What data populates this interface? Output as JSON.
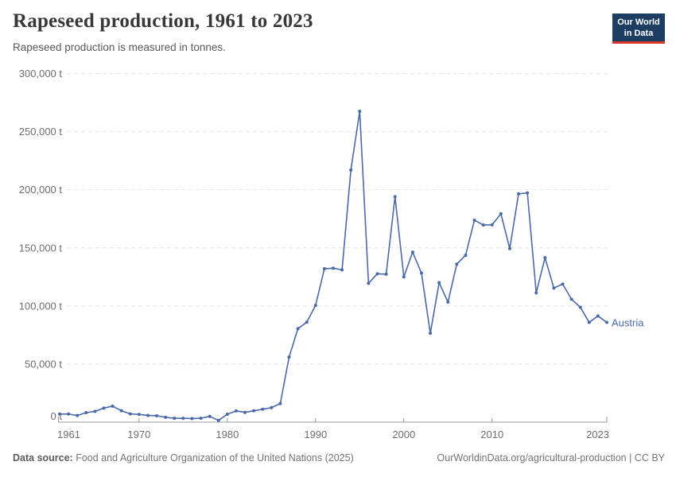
{
  "header": {
    "title": "Rapeseed production, 1961 to 2023",
    "subtitle": "Rapeseed production is measured in tonnes."
  },
  "logo": {
    "line1": "Our World",
    "line2": "in Data"
  },
  "colors": {
    "line": "#4a69a8",
    "grid": "#e3e3e3",
    "axis": "#999999",
    "tick_label": "#6e6e6e",
    "title": "#383838",
    "logo_bg": "#1d3d63",
    "logo_red": "#d93a2b"
  },
  "chart_data": {
    "type": "line",
    "title": "Rapeseed production, 1961 to 2023",
    "subtitle": "Rapeseed production is measured in tonnes.",
    "unit": "t",
    "xlabel": "",
    "ylabel": "",
    "xlim": [
      1961,
      2023
    ],
    "ylim": [
      0,
      300000
    ],
    "grid": "horizontal-dashed",
    "legend_position": "line-end-label",
    "x_ticks": [
      1961,
      1970,
      1980,
      1990,
      2000,
      2010,
      2023
    ],
    "y_ticks": [
      0,
      50000,
      100000,
      150000,
      200000,
      250000,
      300000
    ],
    "years": [
      1961,
      1962,
      1963,
      1964,
      1965,
      1966,
      1967,
      1968,
      1969,
      1970,
      1971,
      1972,
      1973,
      1974,
      1975,
      1976,
      1977,
      1978,
      1979,
      1980,
      1981,
      1982,
      1983,
      1984,
      1985,
      1986,
      1987,
      1988,
      1989,
      1990,
      1991,
      1992,
      1993,
      1994,
      1995,
      1996,
      1997,
      1998,
      1999,
      2000,
      2001,
      2002,
      2003,
      2004,
      2005,
      2006,
      2007,
      2008,
      2009,
      2010,
      2011,
      2012,
      2013,
      2014,
      2015,
      2016,
      2017,
      2018,
      2019,
      2020,
      2021,
      2022,
      2023
    ],
    "series": [
      {
        "name": "Austria",
        "color": "#4a69a8",
        "values": [
          7000,
          7000,
          5700,
          8200,
          9200,
          12100,
          13800,
          9800,
          7100,
          6700,
          5800,
          5500,
          4200,
          3300,
          3300,
          3100,
          3300,
          5000,
          1500,
          6800,
          9700,
          8400,
          9800,
          11100,
          12500,
          16000,
          56000,
          80500,
          86000,
          100500,
          132000,
          132500,
          131000,
          217000,
          267500,
          119500,
          127700,
          127300,
          194000,
          125000,
          146300,
          128300,
          76500,
          120100,
          103300,
          136000,
          143600,
          173800,
          169700,
          169800,
          179300,
          149300,
          196400,
          197300,
          111300,
          141500,
          115400,
          118800,
          105800,
          98900,
          85900,
          91300,
          85900
        ]
      }
    ]
  },
  "footer": {
    "source_label": "Data source:",
    "source_text": "Food and Agriculture Organization of the United Nations (2025)",
    "credit": "OurWorldinData.org/agricultural-production | CC BY"
  }
}
